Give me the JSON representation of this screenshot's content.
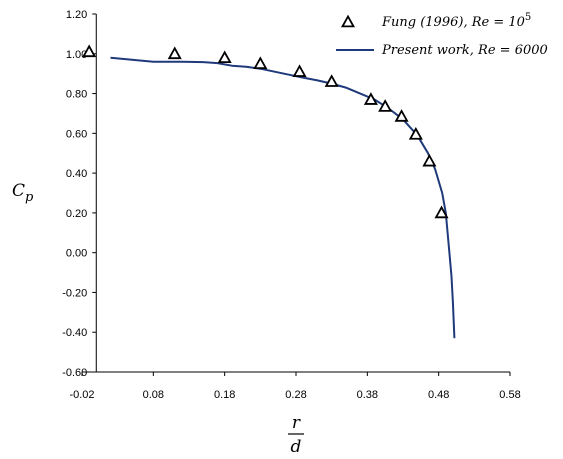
{
  "chart_data": {
    "type": "scatter",
    "title": "",
    "xlabel": {
      "numerator": "r",
      "denominator": "d"
    },
    "ylabel": {
      "base": "C",
      "subscript": "p"
    },
    "xlim": [
      -0.02,
      0.58
    ],
    "ylim": [
      -0.6,
      1.2
    ],
    "x_ticks": [
      "-0.02",
      "0.08",
      "0.18",
      "0.28",
      "0.38",
      "0.48",
      "0.58"
    ],
    "y_ticks": [
      "1.20",
      "1.00",
      "0.80",
      "0.60",
      "0.40",
      "0.20",
      "0.00",
      "-0.20",
      "-0.40",
      "-0.60"
    ],
    "x_tick_values": [
      -0.02,
      0.08,
      0.18,
      0.28,
      0.38,
      0.48,
      0.58
    ],
    "y_tick_values": [
      1.2,
      1.0,
      0.8,
      0.6,
      0.4,
      0.2,
      0.0,
      -0.2,
      -0.4,
      -0.6
    ],
    "grid": false,
    "legend_position": "top-right",
    "series": [
      {
        "name": "Fung (1996),  Re = 10",
        "name_superscript": "5",
        "kind": "markers",
        "marker": "triangle-open",
        "color": "#000000",
        "x": [
          -0.01,
          0.11,
          0.18,
          0.23,
          0.285,
          0.33,
          0.385,
          0.405,
          0.428,
          0.448,
          0.467,
          0.484
        ],
        "y": [
          1.01,
          1.0,
          0.98,
          0.95,
          0.91,
          0.86,
          0.77,
          0.735,
          0.685,
          0.595,
          0.46,
          0.2
        ]
      },
      {
        "name": "Present work,  Re = 6000",
        "kind": "line",
        "color": "#1f3a7a",
        "x": [
          0.02,
          0.05,
          0.08,
          0.1,
          0.12,
          0.15,
          0.17,
          0.19,
          0.21,
          0.23,
          0.25,
          0.27,
          0.29,
          0.31,
          0.33,
          0.35,
          0.37,
          0.39,
          0.41,
          0.43,
          0.45,
          0.465,
          0.475,
          0.485,
          0.49,
          0.495,
          0.498,
          0.5,
          0.502
        ],
        "y": [
          0.98,
          0.97,
          0.96,
          0.96,
          0.96,
          0.958,
          0.953,
          0.94,
          0.935,
          0.925,
          0.91,
          0.895,
          0.88,
          0.866,
          0.85,
          0.83,
          0.8,
          0.77,
          0.725,
          0.67,
          0.59,
          0.5,
          0.42,
          0.3,
          0.2,
          0.0,
          -0.12,
          -0.25,
          -0.43
        ]
      }
    ]
  }
}
